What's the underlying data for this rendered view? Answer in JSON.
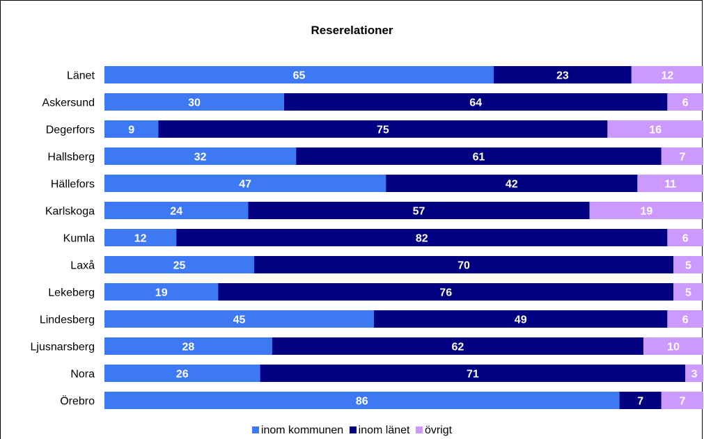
{
  "chart_data": {
    "type": "bar",
    "stacked": true,
    "orientation": "horizontal",
    "percent_scale": true,
    "title": "Reserelationer",
    "categories": [
      "Länet",
      "Askersund",
      "Degerfors",
      "Hallsberg",
      "Hällefors",
      "Karlskoga",
      "Kumla",
      "Laxå",
      "Lekeberg",
      "Lindesberg",
      "Ljusnarsberg",
      "Nora",
      "Örebro"
    ],
    "series": [
      {
        "name": "inom kommunen",
        "color": "#3d78f5",
        "values": [
          65,
          30,
          9,
          32,
          47,
          24,
          12,
          25,
          19,
          45,
          28,
          26,
          86
        ]
      },
      {
        "name": "inom länet",
        "color": "#000080",
        "values": [
          23,
          64,
          75,
          61,
          42,
          57,
          82,
          70,
          76,
          49,
          62,
          71,
          7
        ]
      },
      {
        "name": "övrigt",
        "color": "#cc99ff",
        "values": [
          12,
          6,
          16,
          7,
          11,
          19,
          6,
          5,
          5,
          6,
          10,
          3,
          7
        ]
      }
    ],
    "legend_position": "bottom",
    "grid": false
  }
}
